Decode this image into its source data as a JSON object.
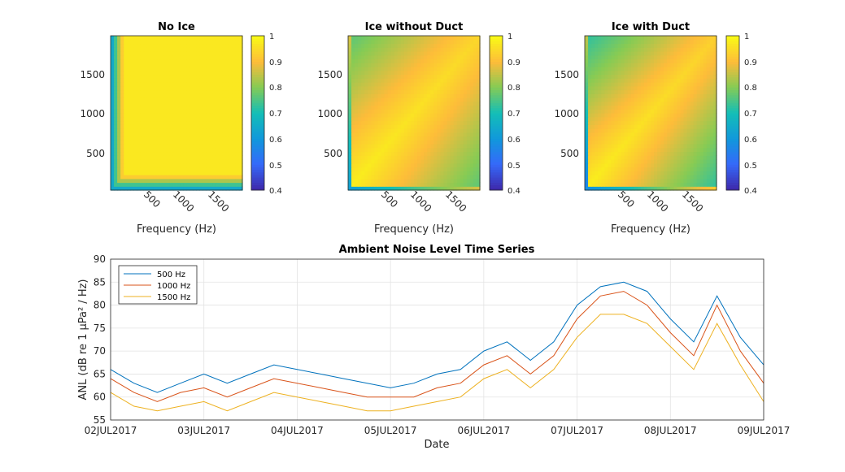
{
  "chart_data": [
    {
      "type": "heatmap",
      "title": "No Ice",
      "xlabel": "Frequency (Hz)",
      "xticks": [
        "500",
        "1000",
        "1500"
      ],
      "yticks": [
        "500",
        "1000",
        "1500"
      ],
      "xlim": [
        0,
        2000
      ],
      "ylim": [
        0,
        2000
      ],
      "colorbar": {
        "ticks": [
          "0.4",
          "0.5",
          "0.6",
          "0.7",
          "0.8",
          "0.9",
          "1"
        ],
        "range": [
          0.4,
          1
        ]
      },
      "pattern": "no_ice"
    },
    {
      "type": "heatmap",
      "title": "Ice without Duct",
      "xlabel": "Frequency (Hz)",
      "xticks": [
        "500",
        "1000",
        "1500"
      ],
      "yticks": [
        "500",
        "1000",
        "1500"
      ],
      "xlim": [
        0,
        2000
      ],
      "ylim": [
        0,
        2000
      ],
      "colorbar": {
        "ticks": [
          "0.4",
          "0.5",
          "0.6",
          "0.7",
          "0.8",
          "0.9",
          "1"
        ],
        "range": [
          0.4,
          1
        ]
      },
      "pattern": "ice_no_duct"
    },
    {
      "type": "heatmap",
      "title": "Ice with Duct",
      "xlabel": "Frequency (Hz)",
      "xticks": [
        "500",
        "1000",
        "1500"
      ],
      "yticks": [
        "500",
        "1000",
        "1500"
      ],
      "xlim": [
        0,
        2000
      ],
      "ylim": [
        0,
        2000
      ],
      "colorbar": {
        "ticks": [
          "0.4",
          "0.5",
          "0.6",
          "0.7",
          "0.8",
          "0.9",
          "1"
        ],
        "range": [
          0.4,
          1
        ]
      },
      "pattern": "ice_duct"
    },
    {
      "type": "line",
      "title": "Ambient Noise Level Time Series",
      "xlabel": "Date",
      "ylabel": "ANL (dB re 1 μPa² / Hz)",
      "x": [
        "2017-07-02T00",
        "2017-07-02T06",
        "2017-07-02T12",
        "2017-07-02T18",
        "2017-07-03T00",
        "2017-07-03T06",
        "2017-07-03T12",
        "2017-07-03T18",
        "2017-07-04T00",
        "2017-07-04T06",
        "2017-07-04T12",
        "2017-07-04T18",
        "2017-07-05T00",
        "2017-07-05T06",
        "2017-07-05T12",
        "2017-07-05T18",
        "2017-07-06T00",
        "2017-07-06T06",
        "2017-07-06T12",
        "2017-07-06T18",
        "2017-07-07T00",
        "2017-07-07T06",
        "2017-07-07T12",
        "2017-07-07T18",
        "2017-07-08T00",
        "2017-07-08T06",
        "2017-07-08T12",
        "2017-07-08T18",
        "2017-07-09T00"
      ],
      "xticks": [
        "02JUL2017",
        "03JUL2017",
        "04JUL2017",
        "05JUL2017",
        "06JUL2017",
        "07JUL2017",
        "08JUL2017",
        "09JUL2017"
      ],
      "yticks": [
        "55",
        "60",
        "65",
        "70",
        "75",
        "80",
        "85",
        "90"
      ],
      "ylim": [
        55,
        90
      ],
      "grid": true,
      "legend": "top-left",
      "series": [
        {
          "name": "500 Hz",
          "color": "#0072BD",
          "values": [
            66,
            63,
            61,
            63,
            65,
            63,
            65,
            67,
            66,
            65,
            64,
            63,
            62,
            63,
            65,
            66,
            70,
            72,
            68,
            72,
            80,
            84,
            85,
            83,
            77,
            72,
            82,
            73,
            67
          ]
        },
        {
          "name": "1000 Hz",
          "color": "#D95319",
          "values": [
            64,
            61,
            59,
            61,
            62,
            60,
            62,
            64,
            63,
            62,
            61,
            60,
            60,
            60,
            62,
            63,
            67,
            69,
            65,
            69,
            77,
            82,
            83,
            80,
            74,
            69,
            80,
            70,
            63
          ]
        },
        {
          "name": "1500 Hz",
          "color": "#EDB120",
          "values": [
            61,
            58,
            57,
            58,
            59,
            57,
            59,
            61,
            60,
            59,
            58,
            57,
            57,
            58,
            59,
            60,
            64,
            66,
            62,
            66,
            73,
            78,
            78,
            76,
            71,
            66,
            76,
            67,
            59
          ]
        }
      ]
    }
  ]
}
